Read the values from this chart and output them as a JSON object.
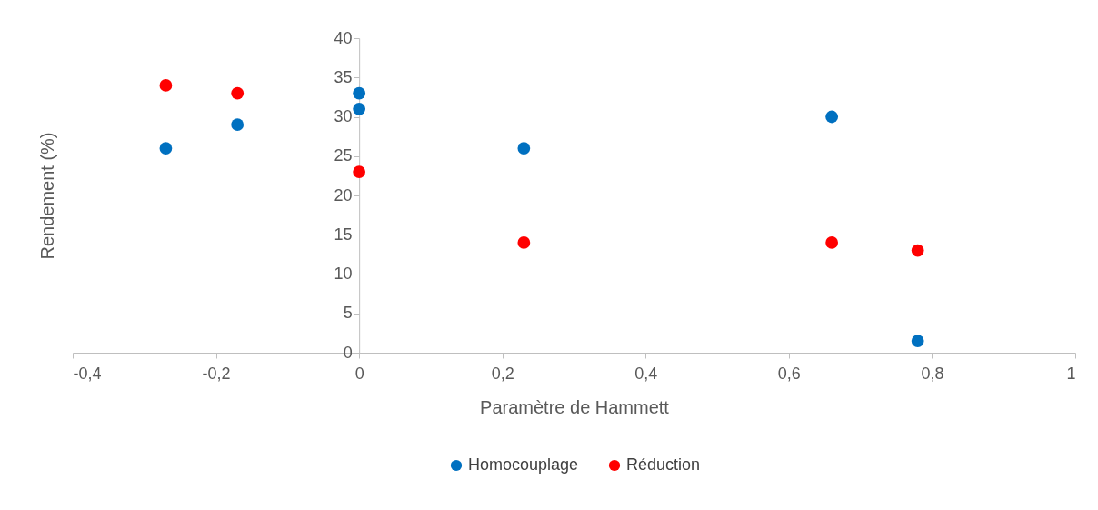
{
  "chart_data": {
    "type": "scatter",
    "xlabel": "Paramètre de Hammett",
    "ylabel": "Rendement (%)",
    "xlim": [
      -0.4,
      1
    ],
    "xticks": [
      {
        "value": -0.4,
        "label": "-0,4"
      },
      {
        "value": -0.2,
        "label": "-0,2"
      },
      0,
      {
        "value": 0.2,
        "label": "0,2"
      },
      {
        "value": 0.4,
        "label": "0,4"
      },
      {
        "value": 0.6,
        "label": "0,6"
      },
      {
        "value": 0.8,
        "label": "0,8"
      },
      1
    ],
    "ylim": [
      0,
      40
    ],
    "yticks": [
      0,
      5,
      10,
      15,
      20,
      25,
      30,
      35,
      40
    ],
    "grid": false,
    "legend": "bottom",
    "marker": "circle",
    "series": [
      {
        "name": "Homocouplage",
        "color": "#0070c0",
        "x": [
          -0.27,
          -0.17,
          0,
          0,
          0.23,
          0.66,
          0.78
        ],
        "values": [
          26,
          29,
          33,
          31,
          26,
          30,
          1.5
        ]
      },
      {
        "name": "Réduction",
        "color": "#ff0000",
        "x": [
          -0.27,
          -0.17,
          0,
          0.23,
          0.66,
          0.78
        ],
        "values": [
          34,
          33,
          23,
          14,
          14,
          13
        ]
      }
    ]
  }
}
